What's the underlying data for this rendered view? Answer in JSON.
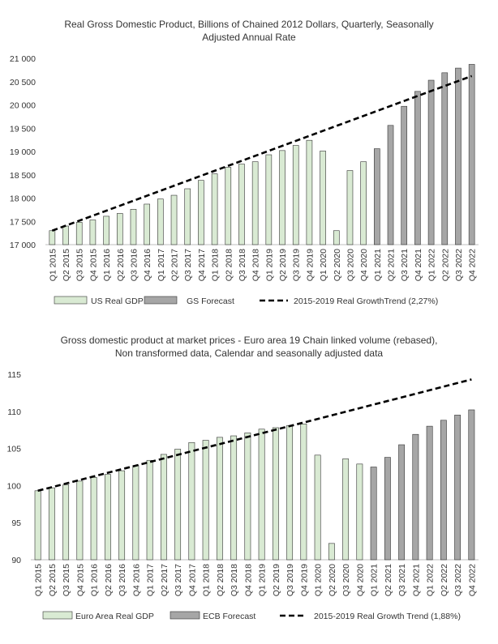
{
  "chart_data": [
    {
      "type": "bar",
      "title_lines": [
        "Real Gross Domestic Product, Billions of Chained 2012 Dollars, Quarterly, Seasonally",
        "Adjusted Annual Rate"
      ],
      "categories": [
        "Q1 2015",
        "Q2 2015",
        "Q3 2015",
        "Q4 2015",
        "Q1 2016",
        "Q2 2016",
        "Q3 2016",
        "Q4 2016",
        "Q1 2017",
        "Q2 2017",
        "Q3 2017",
        "Q4 2017",
        "Q1 2018",
        "Q2 2018",
        "Q3 2018",
        "Q4 2018",
        "Q1 2019",
        "Q2 2019",
        "Q3 2019",
        "Q4 2019",
        "Q1 2020",
        "Q2 2020",
        "Q3 2020",
        "Q4 2020",
        "Q1 2021",
        "Q2 2021",
        "Q3 2021",
        "Q4 2021",
        "Q1 2022",
        "Q2 2022",
        "Q3 2022",
        "Q4 2022"
      ],
      "ylim": [
        17000,
        21000
      ],
      "yticks": [
        17000,
        17500,
        18000,
        18500,
        19000,
        19500,
        20000,
        20500,
        21000
      ],
      "ytick_labels": [
        "17 000",
        "17 500",
        "18 000",
        "18 500",
        "19 000",
        "19 500",
        "20 000",
        "20 500",
        "21 000"
      ],
      "series": [
        {
          "name": "US Real GDP",
          "kind": "bar",
          "color": "#d9ead3",
          "values": [
            17300,
            17400,
            17480,
            17530,
            17610,
            17670,
            17760,
            17870,
            17980,
            18060,
            18200,
            18380,
            18520,
            18660,
            18730,
            18780,
            18930,
            19020,
            19130,
            19240,
            19010,
            17300,
            18590,
            18780,
            null,
            null,
            null,
            null,
            null,
            null,
            null,
            null
          ]
        },
        {
          "name": "GS Forecast",
          "kind": "bar",
          "color": "#a6a6a6",
          "values": [
            null,
            null,
            null,
            null,
            null,
            null,
            null,
            null,
            null,
            null,
            null,
            null,
            null,
            null,
            null,
            null,
            null,
            null,
            null,
            null,
            null,
            null,
            null,
            null,
            19060,
            19560,
            19970,
            20290,
            20530,
            20690,
            20790,
            20870
          ]
        },
        {
          "name": "2015-2019 Real GrowthTrend (2,27%)",
          "kind": "line",
          "color": "#000000",
          "start": 17300,
          "end": 20620
        }
      ]
    },
    {
      "type": "bar",
      "title_lines": [
        "Gross domestic product at market prices - Euro area 19 Chain linked volume (rebased),",
        "Non transformed data, Calendar and seasonally adjusted data"
      ],
      "categories": [
        "Q1 2015",
        "Q2 2015",
        "Q3 2015",
        "Q4 2015",
        "Q1 2016",
        "Q2 2016",
        "Q3 2016",
        "Q4 2016",
        "Q1 2017",
        "Q2 2017",
        "Q3 2017",
        "Q4 2017",
        "Q1 2018",
        "Q2 2018",
        "Q3 2018",
        "Q4 2018",
        "Q1 2019",
        "Q2 2019",
        "Q3 2019",
        "Q4 2019",
        "Q1 2020",
        "Q2 2020",
        "Q3 2020",
        "Q4 2020",
        "Q1 2021",
        "Q2 2021",
        "Q3 2021",
        "Q4 2021",
        "Q1 2022",
        "Q2 2022",
        "Q3 2022",
        "Q4 2022"
      ],
      "ylim": [
        90,
        115
      ],
      "yticks": [
        90,
        95,
        100,
        105,
        110,
        115
      ],
      "ytick_labels": [
        "90",
        "95",
        "100",
        "105",
        "110",
        "115"
      ],
      "series": [
        {
          "name": "Euro Area Real GDP",
          "kind": "bar",
          "color": "#d9ead3",
          "values": [
            99.3,
            99.7,
            100.1,
            100.6,
            101.1,
            101.5,
            102.0,
            102.7,
            103.4,
            104.2,
            104.9,
            105.8,
            106.1,
            106.5,
            106.7,
            107.1,
            107.6,
            107.8,
            108.1,
            108.3,
            104.1,
            92.2,
            103.6,
            102.9,
            null,
            null,
            null,
            null,
            null,
            null,
            null,
            null
          ]
        },
        {
          "name": "ECB Forecast",
          "kind": "bar",
          "color": "#a6a6a6",
          "values": [
            null,
            null,
            null,
            null,
            null,
            null,
            null,
            null,
            null,
            null,
            null,
            null,
            null,
            null,
            null,
            null,
            null,
            null,
            null,
            null,
            null,
            null,
            null,
            null,
            102.5,
            103.8,
            105.5,
            106.9,
            108.0,
            108.8,
            109.5,
            110.2
          ]
        },
        {
          "name": "2015-2019 Real Growth Trend (1,88%)",
          "kind": "line",
          "color": "#000000",
          "start": 99.3,
          "end": 114.3
        }
      ]
    }
  ]
}
